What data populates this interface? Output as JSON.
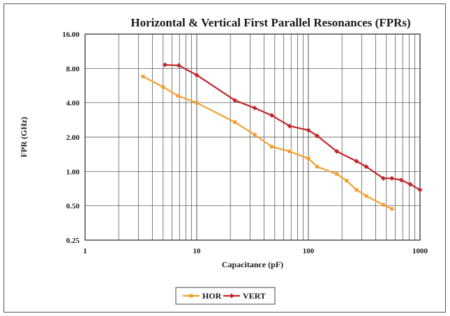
{
  "chart_data": {
    "type": "line",
    "title": "Horizontal & Vertical First Parallel Resonances (FPRs)",
    "xlabel": "Capacitance (pF)",
    "ylabel": "FPR (GHz)",
    "x_scale": "log",
    "y_scale": "log",
    "xlim": [
      1,
      1000
    ],
    "ylim": [
      0.25,
      16
    ],
    "x_ticks": [
      "1",
      "10",
      "100",
      "1000"
    ],
    "y_ticks": [
      "0.25",
      "0.50",
      "1.00",
      "2.00",
      "4.00",
      "8.00",
      "16.00"
    ],
    "grid": true,
    "legend_position": "bottom",
    "series": [
      {
        "name": "HOR",
        "color": "#f0a030",
        "marker": "square",
        "x": [
          3.3,
          5,
          6.8,
          10,
          22,
          33,
          47,
          68,
          100,
          120,
          180,
          220,
          270,
          330,
          470,
          560
        ],
        "y": [
          6.8,
          5.5,
          4.6,
          4.0,
          2.7,
          2.1,
          1.65,
          1.5,
          1.3,
          1.1,
          0.95,
          0.83,
          0.69,
          0.61,
          0.51,
          0.47
        ]
      },
      {
        "name": "VERT",
        "color": "#c0262b",
        "marker": "diamond",
        "x": [
          5.2,
          6.9,
          10,
          22,
          33,
          47,
          68,
          100,
          120,
          180,
          270,
          330,
          470,
          560,
          680,
          820,
          1000
        ],
        "y": [
          8.6,
          8.5,
          7.0,
          4.2,
          3.6,
          3.1,
          2.5,
          2.3,
          2.05,
          1.5,
          1.23,
          1.1,
          0.87,
          0.87,
          0.84,
          0.77,
          0.69
        ]
      }
    ]
  }
}
